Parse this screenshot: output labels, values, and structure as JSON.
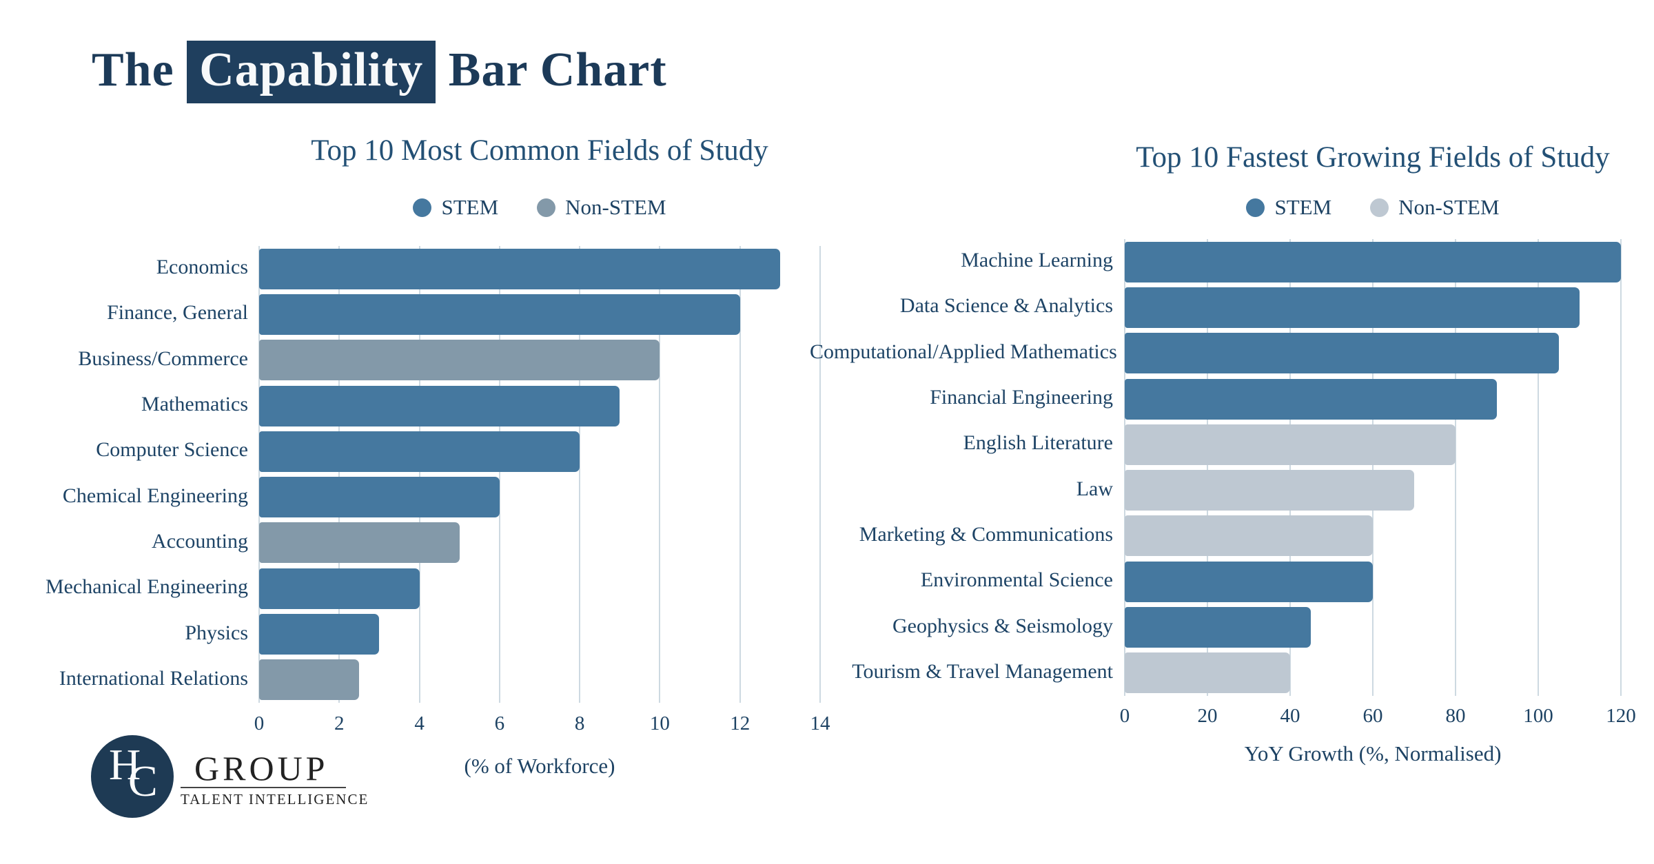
{
  "page_title": {
    "prefix": "The ",
    "highlight": "Capability",
    "suffix": " Bar Chart"
  },
  "logo": {
    "monogram": [
      "H",
      "C"
    ],
    "name": "GROUP",
    "tagline": "TALENT INTELLIGENCE"
  },
  "colors": {
    "stem": "#45789f",
    "non_stem_common": "#8399a9",
    "non_stem_growing": "#bec8d2",
    "navy_text": "#1d4263",
    "title_navy": "#235075",
    "highlight_bg": "#1f3f5e",
    "gridline": "#cdd9e1",
    "logo_circle": "#1e3a54"
  },
  "chart_data": [
    {
      "type": "bar",
      "orientation": "horizontal",
      "title": "Top 10 Most Common Fields of Study",
      "xlabel": "(% of Workforce)",
      "xlim": [
        0,
        14
      ],
      "xticks": [
        0,
        2,
        4,
        6,
        8,
        10,
        12,
        14
      ],
      "grid": true,
      "legend_position": "top",
      "legend": [
        {
          "label": "STEM",
          "color": "#45789f"
        },
        {
          "label": "Non-STEM",
          "color": "#8399a9"
        }
      ],
      "categories": [
        "Economics",
        "Finance, General",
        "Business/Commerce",
        "Mathematics",
        "Computer Science",
        "Chemical Engineering",
        "Accounting",
        "Mechanical Engineering",
        "Physics",
        "International Relations"
      ],
      "values": [
        13,
        12,
        10,
        9,
        8,
        6,
        5,
        4,
        3,
        2.5
      ],
      "groups": [
        "STEM",
        "STEM",
        "Non-STEM",
        "STEM",
        "STEM",
        "STEM",
        "Non-STEM",
        "STEM",
        "STEM",
        "Non-STEM"
      ]
    },
    {
      "type": "bar",
      "orientation": "horizontal",
      "title": "Top 10 Fastest Growing Fields of Study",
      "xlabel": "YoY Growth (%, Normalised)",
      "xlim": [
        0,
        120
      ],
      "xticks": [
        0,
        20,
        40,
        60,
        80,
        100,
        120
      ],
      "grid": true,
      "legend_position": "top",
      "legend": [
        {
          "label": "STEM",
          "color": "#45789f"
        },
        {
          "label": "Non-STEM",
          "color": "#bec8d2"
        }
      ],
      "categories": [
        "Machine Learning",
        "Data Science & Analytics",
        "Computational/Applied Mathematics",
        "Financial Engineering",
        "English Literature",
        "Law",
        "Marketing & Communications",
        "Environmental Science",
        "Geophysics & Seismology",
        "Tourism & Travel Management"
      ],
      "values": [
        120,
        110,
        105,
        90,
        80,
        70,
        60,
        60,
        45,
        40
      ],
      "groups": [
        "STEM",
        "STEM",
        "STEM",
        "STEM",
        "Non-STEM",
        "Non-STEM",
        "Non-STEM",
        "STEM",
        "STEM",
        "Non-STEM"
      ]
    }
  ]
}
